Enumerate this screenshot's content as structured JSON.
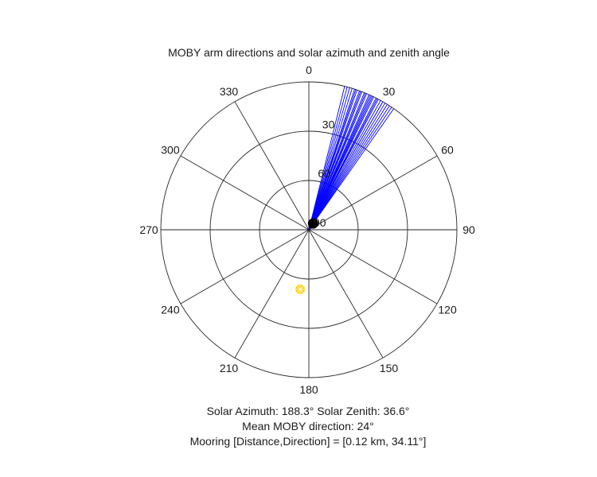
{
  "chart_data": {
    "type": "polar",
    "title": "MOBY arm directions and solar azimuth and zenith angle",
    "theta_zero": "top",
    "theta_direction": "clockwise",
    "theta_ticks": [
      0,
      30,
      60,
      90,
      120,
      150,
      180,
      210,
      240,
      270,
      300,
      330
    ],
    "r_ticks": [
      30,
      60,
      90
    ],
    "r_direction": "reversed",
    "r_range": [
      90,
      0
    ],
    "grid": true,
    "series": [
      {
        "kind": "arm-direction-lines",
        "color": "#0000ff",
        "r_outer": 90,
        "theta": [
          14,
          15,
          16,
          17,
          18,
          18.5,
          19,
          20,
          20.5,
          21,
          22,
          22.5,
          23,
          24,
          24.5,
          25,
          25.5,
          26,
          27,
          27.5,
          28,
          29,
          30,
          31,
          32,
          33,
          34,
          35
        ]
      },
      {
        "kind": "marker",
        "label": "mooring",
        "color": "#000000",
        "theta": 34.11,
        "r": 85.4
      },
      {
        "kind": "marker",
        "label": "sun",
        "color": "#ffd000",
        "theta": 188.3,
        "r": 53.4
      }
    ]
  },
  "captions": {
    "solar": "Solar Azimuth: 188.3°    Solar Zenith: 36.6°",
    "mean": "Mean MOBY direction: 24°",
    "mooring": "Mooring [Distance,Direction] = [0.12 km, 34.11°]"
  }
}
